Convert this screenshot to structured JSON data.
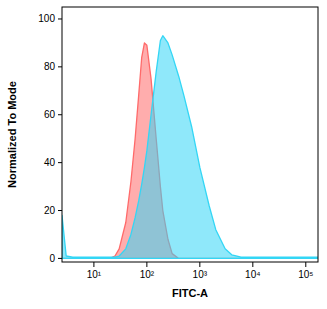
{
  "chart_data": {
    "type": "area",
    "x_label": "FITC-A",
    "y_label": "Normalized To Mode",
    "log": "x",
    "grid": false,
    "xlim": [
      2.5,
      170000
    ],
    "ylim": [
      -1.5,
      105
    ],
    "xticks": [
      {
        "value": 10,
        "label": "10¹"
      },
      {
        "value": 100,
        "label": "10²"
      },
      {
        "value": 1000,
        "label": "10³"
      },
      {
        "value": 10000,
        "label": "10⁴"
      },
      {
        "value": 100000,
        "label": "10⁵"
      }
    ],
    "yticks": [
      0,
      20,
      40,
      60,
      80,
      100
    ],
    "x": [
      2.5,
      3,
      4,
      6,
      10,
      20,
      25,
      30,
      40,
      50,
      60,
      70,
      80,
      90,
      100,
      120,
      150,
      180,
      200,
      250,
      300,
      400,
      500,
      700,
      1000,
      1500,
      2000,
      3000,
      4000,
      6000,
      10000,
      100000,
      170000
    ],
    "series": [
      {
        "color": "#ff6a6a",
        "values": [
          0,
          0,
          0,
          0,
          0,
          0,
          1,
          4,
          15,
          32,
          50,
          68,
          84,
          90,
          89,
          75,
          50,
          30,
          20,
          8,
          2,
          0,
          0,
          0,
          0,
          0,
          0,
          0,
          0,
          0,
          0,
          0,
          0
        ]
      },
      {
        "color": "#33d6f5",
        "values": [
          18,
          1,
          0.5,
          0.5,
          0.5,
          0.5,
          0.5,
          1,
          4,
          10,
          17,
          24,
          31,
          38,
          45,
          60,
          78,
          91,
          93,
          90,
          85,
          76,
          68,
          55,
          38,
          22,
          12,
          4,
          1.5,
          0.5,
          0.5,
          0.5,
          0.5
        ]
      }
    ]
  }
}
